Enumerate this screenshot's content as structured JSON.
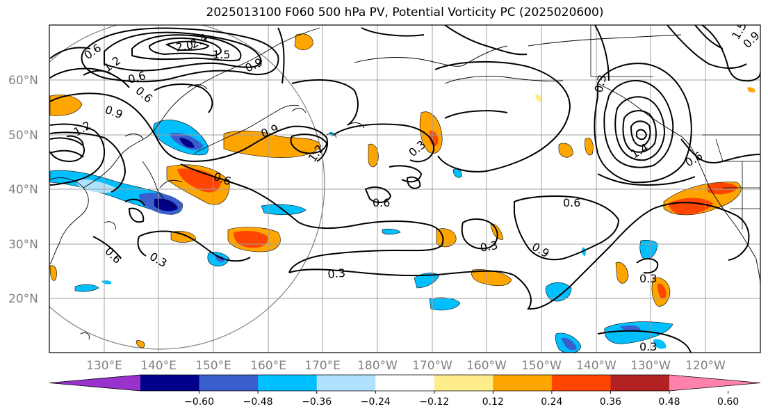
{
  "title": "2025013100 F060 500 hPa PV, Potential Vorticity PC (2025020600)",
  "map": {
    "lat_labels": [
      "60°N",
      "50°N",
      "40°N",
      "30°N",
      "20°N"
    ],
    "lon_labels": [
      "130°E",
      "140°E",
      "150°E",
      "160°E",
      "170°E",
      "180°W",
      "170°W",
      "160°W",
      "150°W",
      "140°W",
      "130°W",
      "120°W"
    ],
    "contour_labels": [
      "0.6",
      "1.2",
      "0.6",
      "2.0",
      "2.4",
      "1.5",
      "0.9",
      "1.5",
      "0.9",
      "0.9",
      "1.2",
      "0.9",
      "1.2",
      "0.6",
      "0.6",
      "0.6",
      "0.3",
      "0.6",
      "0.3",
      "0.3",
      "0.9",
      "0.3",
      "0.3",
      "0.3",
      "0.6",
      "0.3",
      "1.4",
      "0.6"
    ]
  },
  "colorbar": {
    "ticks": [
      "−0.60",
      "−0.48",
      "−0.36",
      "−0.24",
      "−0.12",
      "0.12",
      "0.24",
      "0.36",
      "0.48",
      "0.60"
    ],
    "colors": [
      "#9932cc",
      "#00008b",
      "#3a5fcd",
      "#00bfff",
      "#b0e2ff",
      "#ffffff",
      "#ffec8b",
      "#ffa500",
      "#ff4500",
      "#b22222",
      "#ff82ab"
    ]
  }
}
